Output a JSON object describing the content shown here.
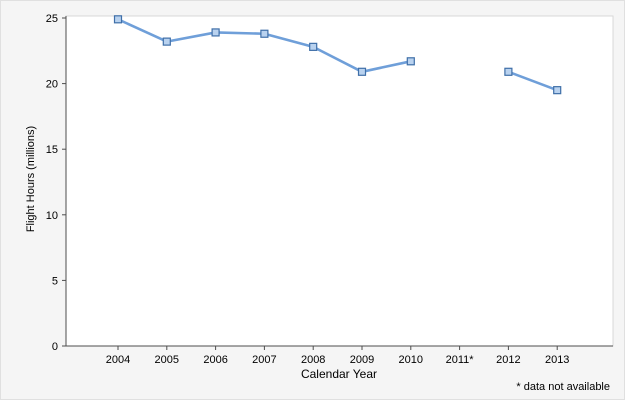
{
  "chart_data": {
    "type": "line",
    "categories": [
      "2004",
      "2005",
      "2006",
      "2007",
      "2008",
      "2009",
      "2010",
      "2011*",
      "2012",
      "2013"
    ],
    "values": [
      24.9,
      23.2,
      23.9,
      23.8,
      22.8,
      20.9,
      21.7,
      null,
      20.9,
      19.5
    ],
    "title": "",
    "xlabel": "Calendar Year",
    "ylabel": "Flight Hours (millions)",
    "ylim": [
      0,
      25
    ],
    "yticks": [
      0,
      5,
      10,
      15,
      20,
      25
    ],
    "footnote": "* data not available",
    "grid": false,
    "legend": false,
    "colors": {
      "line": "#6f9fd9",
      "marker_fill": "#b9d2ef",
      "marker_edge": "#3f6fa8",
      "axis": "#4d4d4d",
      "plot_bg": "#ffffff",
      "page_bg": "#f5f5f5",
      "plot_border": "#d8d8d8",
      "text": "#000000"
    }
  }
}
